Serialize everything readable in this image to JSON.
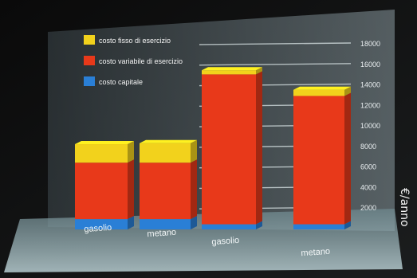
{
  "chart_data": {
    "type": "bar",
    "stacked": true,
    "categories": [
      "gasolio",
      "metano",
      "gasolio",
      "metano"
    ],
    "series": [
      {
        "name": "costo capitale",
        "values": [
          1000,
          1000,
          500,
          500
        ],
        "color": "#2a7fd6"
      },
      {
        "name": "costo variabile di esercizio",
        "values": [
          5500,
          5500,
          14600,
          12500
        ],
        "color": "#e8391a"
      },
      {
        "name": "costo fisso di esercizio",
        "values": [
          1800,
          1900,
          400,
          600
        ],
        "color": "#f2d21c"
      }
    ],
    "yticks": [
      "2000",
      "4000",
      "6000",
      "8000",
      "10000",
      "12000",
      "14000",
      "16000",
      "18000"
    ],
    "ylim": [
      0,
      18000
    ],
    "ylabel": "€/anno",
    "grid": true,
    "legend_position": "top-left"
  }
}
